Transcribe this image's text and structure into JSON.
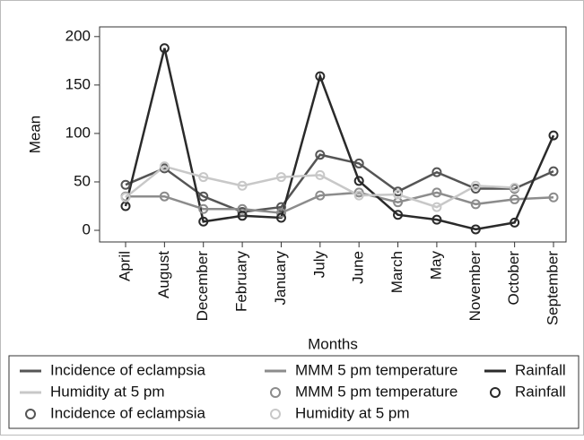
{
  "chart_data": {
    "type": "line",
    "x_label": "Months",
    "y_label": "Mean",
    "categories": [
      "April",
      "August",
      "December",
      "February",
      "January",
      "July",
      "June",
      "March",
      "May",
      "November",
      "October",
      "September"
    ],
    "series": [
      {
        "name": "Incidence of eclampsia",
        "color": "#555555",
        "values": [
          47,
          64,
          35,
          19,
          24,
          78,
          69,
          40,
          60,
          43,
          43,
          61
        ]
      },
      {
        "name": "MMM 5 pm temperature",
        "color": "#8c8c8c",
        "values": [
          35,
          35,
          22,
          22,
          18,
          36,
          39,
          29,
          39,
          27,
          32,
          34
        ]
      },
      {
        "name": "Rainfall",
        "color": "#2a2a2a",
        "values": [
          25,
          188,
          9,
          15,
          13,
          159,
          51,
          16,
          11,
          1,
          8,
          98
        ]
      },
      {
        "name": "Humidity at 5 pm",
        "color": "#c8c8c8",
        "values": [
          34,
          66,
          55,
          46,
          55,
          57,
          36,
          37,
          24,
          46,
          44,
          null
        ]
      }
    ],
    "ylim": [
      -12,
      210
    ],
    "yticks": [
      0,
      50,
      100,
      150,
      200
    ],
    "grid": false,
    "legend": {
      "position": "bottom",
      "entries": [
        {
          "series": 0,
          "kind": "line"
        },
        {
          "series": 1,
          "kind": "line"
        },
        {
          "series": 2,
          "kind": "line"
        },
        {
          "series": 3,
          "kind": "line"
        },
        {
          "series": 1,
          "kind": "marker"
        },
        {
          "series": 2,
          "kind": "marker"
        },
        {
          "series": 0,
          "kind": "marker"
        },
        {
          "series": 3,
          "kind": "marker"
        }
      ]
    }
  }
}
